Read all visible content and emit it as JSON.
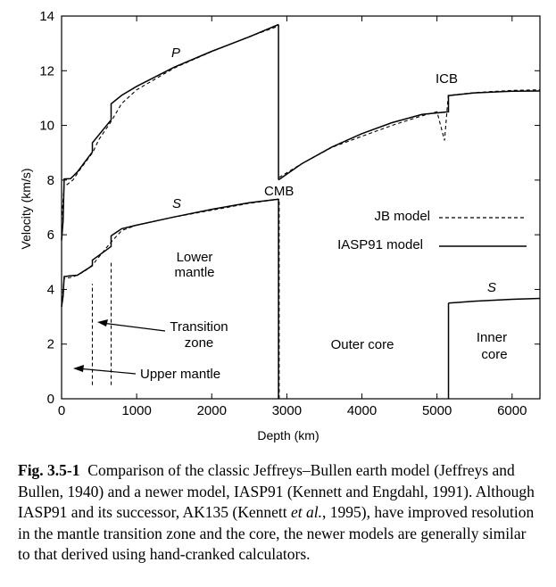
{
  "chart_data": {
    "type": "line",
    "xlabel": "Depth (km)",
    "ylabel": "Velocity (km/s)",
    "xlim": [
      0,
      6371
    ],
    "ylim": [
      0,
      14
    ],
    "xticks": [
      0,
      1000,
      2000,
      3000,
      4000,
      5000,
      6000
    ],
    "yticks": [
      0,
      2,
      4,
      6,
      8,
      10,
      12,
      14
    ],
    "grid": false,
    "legend_position": "center-right",
    "series": [
      {
        "name": "JB model",
        "style": "dashed",
        "segments": [
          [
            [
              0,
              6.5
            ],
            [
              33,
              7.75
            ],
            [
              150,
              8.0
            ],
            [
              250,
              8.4
            ],
            [
              413,
              9.0
            ],
            [
              500,
              9.5
            ],
            [
              650,
              10.1
            ],
            [
              800,
              10.8
            ],
            [
              1000,
              11.3
            ],
            [
              1500,
              12.1
            ],
            [
              2000,
              12.7
            ],
            [
              2500,
              13.25
            ],
            [
              2898,
              13.64
            ]
          ],
          [
            [
              2898,
              8.1
            ],
            [
              3200,
              8.6
            ],
            [
              3600,
              9.2
            ],
            [
              4000,
              9.6
            ],
            [
              4400,
              10.0
            ],
            [
              4800,
              10.35
            ],
            [
              5000,
              10.5
            ],
            [
              5100,
              9.45
            ],
            [
              5150,
              11.1
            ],
            [
              5500,
              11.2
            ],
            [
              6000,
              11.28
            ],
            [
              6371,
              11.3
            ]
          ],
          [
            [
              0,
              3.4
            ],
            [
              33,
              4.4
            ],
            [
              150,
              4.45
            ],
            [
              300,
              4.65
            ],
            [
              413,
              4.9
            ],
            [
              500,
              5.2
            ],
            [
              650,
              5.7
            ],
            [
              800,
              6.15
            ],
            [
              1000,
              6.35
            ],
            [
              1500,
              6.65
            ],
            [
              2000,
              6.9
            ],
            [
              2500,
              7.15
            ],
            [
              2898,
              7.3
            ]
          ]
        ]
      },
      {
        "name": "IASP91 model",
        "style": "solid",
        "segments": [
          [
            [
              0,
              5.8
            ],
            [
              20,
              6.5
            ],
            [
              35,
              8.04
            ],
            [
              120,
              8.05
            ],
            [
              210,
              8.3
            ],
            [
              410,
              9.03
            ],
            [
              410,
              9.36
            ],
            [
              660,
              10.2
            ],
            [
              660,
              10.79
            ],
            [
              800,
              11.1
            ],
            [
              1000,
              11.43
            ],
            [
              1500,
              12.13
            ],
            [
              2000,
              12.71
            ],
            [
              2500,
              13.24
            ],
            [
              2889,
              13.69
            ]
          ],
          [
            [
              2889,
              8.01
            ],
            [
              3200,
              8.6
            ],
            [
              3600,
              9.21
            ],
            [
              4000,
              9.7
            ],
            [
              4400,
              10.1
            ],
            [
              4800,
              10.4
            ],
            [
              5153,
              10.5
            ],
            [
              5153,
              11.09
            ],
            [
              5500,
              11.19
            ],
            [
              6000,
              11.25
            ],
            [
              6371,
              11.26
            ]
          ],
          [
            [
              0,
              3.36
            ],
            [
              20,
              3.75
            ],
            [
              35,
              4.47
            ],
            [
              120,
              4.5
            ],
            [
              210,
              4.52
            ],
            [
              410,
              4.87
            ],
            [
              410,
              5.07
            ],
            [
              660,
              5.57
            ],
            [
              660,
              5.96
            ],
            [
              800,
              6.22
            ],
            [
              1000,
              6.35
            ],
            [
              1500,
              6.65
            ],
            [
              2000,
              6.93
            ],
            [
              2500,
              7.17
            ],
            [
              2889,
              7.3
            ]
          ],
          [
            [
              5153,
              3.5
            ],
            [
              5500,
              3.57
            ],
            [
              6000,
              3.64
            ],
            [
              6371,
              3.67
            ]
          ]
        ]
      }
    ],
    "annotations": {
      "p_wave": "P",
      "s_wave": "S",
      "s_inner": "S",
      "icb": "ICB",
      "cmb": "CMB",
      "lower_mantle": [
        "Lower",
        "mantle"
      ],
      "transition_zone": [
        "Transition",
        "zone"
      ],
      "upper_mantle": "Upper mantle",
      "outer_core": "Outer core",
      "inner_core": [
        "Inner",
        "core"
      ]
    }
  },
  "legend": {
    "jb_label": "JB model",
    "iasp_label": "IASP91 model"
  },
  "caption": {
    "fig_number": "Fig. 3.5-1",
    "text_part1": "Comparison of the classic Jeffreys–Bullen earth model (Jeffreys and Bullen, 1940) and a newer model, IASP91 (Kennett and Engdahl, 1991). Although IASP91 and its successor, AK135 (Kennett ",
    "et_al": "et al.",
    "text_part2": ", 1995), have improved resolution in the mantle transition zone and the core, the newer models are generally similar to that derived using hand-cranked calculators."
  }
}
